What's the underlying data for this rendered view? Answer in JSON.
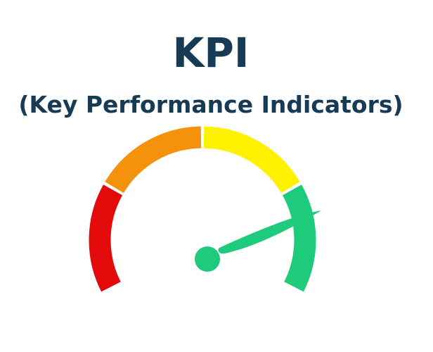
{
  "header": {
    "title": "KPI",
    "subtitle": "(Key Performance Indicators)"
  }
}
